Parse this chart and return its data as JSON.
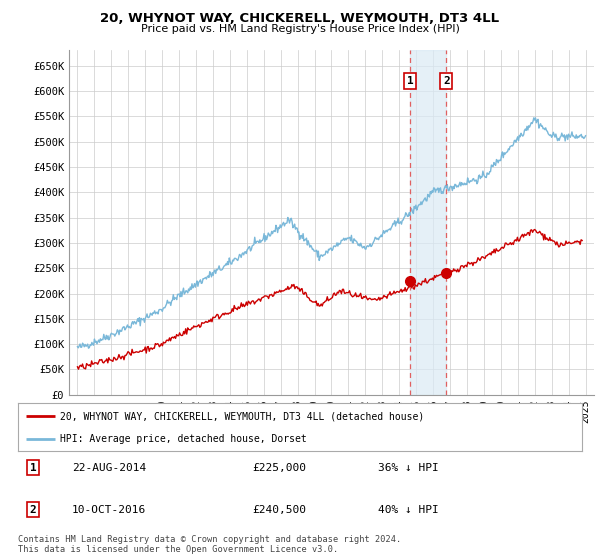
{
  "title": "20, WHYNOT WAY, CHICKERELL, WEYMOUTH, DT3 4LL",
  "subtitle": "Price paid vs. HM Land Registry's House Price Index (HPI)",
  "ylabel_ticks": [
    "£0",
    "£50K",
    "£100K",
    "£150K",
    "£200K",
    "£250K",
    "£300K",
    "£350K",
    "£400K",
    "£450K",
    "£500K",
    "£550K",
    "£600K",
    "£650K"
  ],
  "ytick_values": [
    0,
    50000,
    100000,
    150000,
    200000,
    250000,
    300000,
    350000,
    400000,
    450000,
    500000,
    550000,
    600000,
    650000
  ],
  "xlim": [
    1994.5,
    2025.5
  ],
  "ylim": [
    0,
    680000
  ],
  "xtick_years": [
    1995,
    1996,
    1997,
    1998,
    1999,
    2000,
    2001,
    2002,
    2003,
    2004,
    2005,
    2006,
    2007,
    2008,
    2009,
    2010,
    2011,
    2012,
    2013,
    2014,
    2015,
    2016,
    2017,
    2018,
    2019,
    2020,
    2021,
    2022,
    2023,
    2024,
    2025
  ],
  "hpi_color": "#7ab8d9",
  "property_color": "#cc0000",
  "sale1_x": 2014.645,
  "sale1_y": 225000,
  "sale2_x": 2016.78,
  "sale2_y": 240500,
  "sale1_label": "1",
  "sale2_label": "2",
  "vline_color": "#e06060",
  "shade_color": "#daeaf5",
  "legend_line1": "20, WHYNOT WAY, CHICKERELL, WEYMOUTH, DT3 4LL (detached house)",
  "legend_line2": "HPI: Average price, detached house, Dorset",
  "table_row1": [
    "1",
    "22-AUG-2014",
    "£225,000",
    "36% ↓ HPI"
  ],
  "table_row2": [
    "2",
    "10-OCT-2016",
    "£240,500",
    "40% ↓ HPI"
  ],
  "footer": "Contains HM Land Registry data © Crown copyright and database right 2024.\nThis data is licensed under the Open Government Licence v3.0.",
  "bg_color": "#ffffff",
  "plot_bg_color": "#ffffff",
  "grid_color": "#cccccc"
}
